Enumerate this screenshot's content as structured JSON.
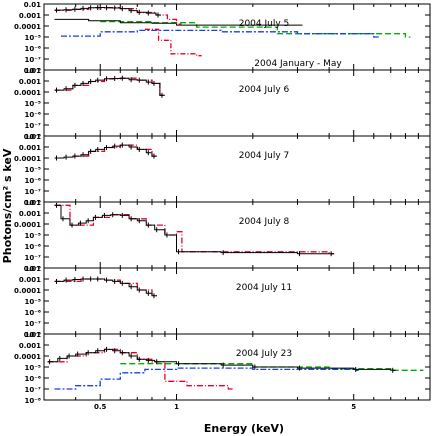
{
  "chart_data": {
    "type": "line",
    "xlabel": "Energy (keV)",
    "ylabel": "Photons/cm² s keV",
    "x_scale": "log",
    "y_scale": "log",
    "xlim": [
      0.3,
      10
    ],
    "ylim": [
      1e-08,
      0.01
    ],
    "x_tick_labels": [
      "0.5",
      "1",
      "5"
    ],
    "x_tick_values": [
      0.5,
      1,
      5
    ],
    "y_tick_labels": [
      "0.01",
      "0.001",
      "0.0001",
      "10⁻⁵",
      "10⁻⁶",
      "10⁻⁷",
      "10⁻⁸"
    ],
    "series_colors": {
      "data": "#000000",
      "model_total": "#e8002a",
      "comp_green": "#00b000",
      "comp_blue": "#1a3ee8"
    },
    "panels": [
      {
        "label": "2004 July 5",
        "label2": "2004 January - May",
        "data": [
          [
            0.33,
            0.0028
          ],
          [
            0.36,
            0.003
          ],
          [
            0.39,
            0.0033
          ],
          [
            0.42,
            0.004
          ],
          [
            0.45,
            0.0045
          ],
          [
            0.48,
            0.0048
          ],
          [
            0.52,
            0.0046
          ],
          [
            0.56,
            0.0043
          ],
          [
            0.6,
            0.0038
          ],
          [
            0.65,
            0.0025
          ],
          [
            0.7,
            0.0018
          ],
          [
            0.76,
            0.0015
          ],
          [
            0.83,
            0.001
          ]
        ],
        "model": [
          [
            0.33,
            0.0027
          ],
          [
            0.39,
            0.0032
          ],
          [
            0.45,
            0.0044
          ],
          [
            0.52,
            0.0046
          ],
          [
            0.6,
            0.0037
          ],
          [
            0.7,
            0.0017
          ],
          [
            0.83,
            0.001
          ],
          [
            0.92,
            0.0004
          ],
          [
            1.0,
            0.00015
          ]
        ],
        "extra": [
          [
            0.33,
            0.0004
          ],
          [
            0.45,
            0.0003
          ],
          [
            0.6,
            0.0002
          ],
          [
            0.8,
            0.00018
          ],
          [
            1.0,
            0.00012
          ],
          [
            1.5,
            0.00012
          ],
          [
            2.0,
            0.00012
          ],
          [
            3.0,
            0.00012
          ]
        ],
        "green": [
          [
            0.5,
            0.00025
          ],
          [
            0.8,
            0.0002
          ],
          [
            1.2,
            8e-05
          ],
          [
            2.5,
            2e-05
          ],
          [
            5,
            2e-05
          ],
          [
            8,
            1e-05
          ]
        ],
        "blue": [
          [
            0.35,
            1.2e-05
          ],
          [
            0.5,
            3e-05
          ],
          [
            0.7,
            4e-05
          ],
          [
            1.0,
            4e-05
          ],
          [
            1.5,
            3e-05
          ],
          [
            3,
            2e-05
          ],
          [
            6,
            1e-05
          ]
        ],
        "red_dash": [
          [
            0.75,
            5e-05
          ],
          [
            0.85,
            5e-06
          ],
          [
            0.95,
            3e-07
          ],
          [
            1.2,
            2e-07
          ]
        ]
      },
      {
        "label": "2004 July 6",
        "data": [
          [
            0.33,
            0.00015
          ],
          [
            0.36,
            0.0002
          ],
          [
            0.39,
            0.0004
          ],
          [
            0.42,
            0.0006
          ],
          [
            0.45,
            0.0009
          ],
          [
            0.48,
            0.0012
          ],
          [
            0.52,
            0.0016
          ],
          [
            0.56,
            0.0017
          ],
          [
            0.6,
            0.0018
          ],
          [
            0.65,
            0.0013
          ],
          [
            0.7,
            0.0012
          ],
          [
            0.76,
            0.0008
          ],
          [
            0.8,
            0.0006
          ],
          [
            0.86,
            5e-05
          ]
        ],
        "model": [
          [
            0.33,
            0.00015
          ],
          [
            0.39,
            0.0004
          ],
          [
            0.45,
            0.0009
          ],
          [
            0.52,
            0.0016
          ],
          [
            0.6,
            0.0018
          ],
          [
            0.7,
            0.0012
          ],
          [
            0.8,
            0.0006
          ],
          [
            0.86,
            5e-05
          ]
        ]
      },
      {
        "label": "2004 July 7",
        "data": [
          [
            0.33,
            0.0001
          ],
          [
            0.36,
            0.00012
          ],
          [
            0.39,
            0.00015
          ],
          [
            0.42,
            0.0002
          ],
          [
            0.45,
            0.0004
          ],
          [
            0.48,
            0.0006
          ],
          [
            0.52,
            0.0009
          ],
          [
            0.56,
            0.0012
          ],
          [
            0.6,
            0.0015
          ],
          [
            0.65,
            0.001
          ],
          [
            0.7,
            0.0006
          ],
          [
            0.76,
            0.0003
          ],
          [
            0.8,
            0.00015
          ]
        ],
        "model": [
          [
            0.39,
            0.00015
          ],
          [
            0.45,
            0.0004
          ],
          [
            0.52,
            0.0009
          ],
          [
            0.6,
            0.0015
          ],
          [
            0.7,
            0.0006
          ],
          [
            0.8,
            0.00015
          ]
        ]
      },
      {
        "label": "2004 July 8",
        "data": [
          [
            0.33,
            0.005
          ],
          [
            0.35,
            0.0003
          ],
          [
            0.38,
            8e-05
          ],
          [
            0.41,
            0.00012
          ],
          [
            0.44,
            0.0002
          ],
          [
            0.47,
            0.0004
          ],
          [
            0.51,
            0.0006
          ],
          [
            0.55,
            0.0007
          ],
          [
            0.6,
            0.0006
          ],
          [
            0.65,
            0.0003
          ],
          [
            0.7,
            0.0002
          ],
          [
            0.76,
            8e-05
          ],
          [
            0.82,
            3e-05
          ],
          [
            0.9,
            1e-05
          ],
          [
            1.0,
            3e-07
          ],
          [
            1.5,
            2.5e-07
          ],
          [
            3.0,
            2e-07
          ],
          [
            4.0,
            2e-07
          ]
        ],
        "model": [
          [
            0.33,
            0.005
          ],
          [
            0.38,
            8e-05
          ],
          [
            0.47,
            0.0004
          ],
          [
            0.55,
            0.0007
          ],
          [
            0.65,
            0.0003
          ],
          [
            0.76,
            8e-05
          ],
          [
            0.9,
            1e-05
          ],
          [
            1.0,
            2e-05
          ],
          [
            1.05,
            3e-07
          ],
          [
            4.0,
            2e-07
          ]
        ]
      },
      {
        "label": "2004 July 11",
        "data": [
          [
            0.33,
            0.0006
          ],
          [
            0.36,
            0.0008
          ],
          [
            0.39,
            0.0009
          ],
          [
            0.42,
            0.001
          ],
          [
            0.45,
            0.001
          ],
          [
            0.48,
            0.001
          ],
          [
            0.52,
            0.0008
          ],
          [
            0.56,
            0.0006
          ],
          [
            0.6,
            0.0004
          ],
          [
            0.65,
            0.0002
          ],
          [
            0.7,
            0.0001
          ],
          [
            0.76,
            5e-05
          ],
          [
            0.8,
            3e-05
          ]
        ],
        "model": [
          [
            0.33,
            0.0006
          ],
          [
            0.42,
            0.001
          ],
          [
            0.52,
            0.0008
          ],
          [
            0.6,
            0.0004
          ],
          [
            0.7,
            0.0001
          ],
          [
            0.8,
            3e-05
          ]
        ]
      },
      {
        "label": "2004 July 23",
        "data": [
          [
            0.31,
            3e-05
          ],
          [
            0.34,
            6e-05
          ],
          [
            0.37,
            0.0001
          ],
          [
            0.4,
            0.00015
          ],
          [
            0.44,
            0.0002
          ],
          [
            0.48,
            0.0003
          ],
          [
            0.52,
            0.0004
          ],
          [
            0.56,
            0.0003
          ],
          [
            0.6,
            0.0002
          ],
          [
            0.65,
            0.0001
          ],
          [
            0.7,
            5e-05
          ],
          [
            0.76,
            4e-05
          ],
          [
            0.82,
            3e-05
          ],
          [
            1.0,
            2e-05
          ],
          [
            1.5,
            1.5e-05
          ],
          [
            2.0,
            1e-05
          ],
          [
            3.0,
            8e-06
          ],
          [
            5.0,
            6e-06
          ],
          [
            7.0,
            5e-06
          ]
        ],
        "model": [
          [
            0.31,
            3e-05
          ],
          [
            0.37,
            0.0001
          ],
          [
            0.44,
            0.0002
          ],
          [
            0.52,
            0.0004
          ],
          [
            0.6,
            0.0002
          ],
          [
            0.7,
            5e-05
          ],
          [
            0.8,
            3e-05
          ],
          [
            0.9,
            5e-07
          ],
          [
            1.1,
            2e-07
          ],
          [
            1.6,
            1e-07
          ]
        ],
        "green": [
          [
            0.6,
            2e-05
          ],
          [
            1.0,
            2e-05
          ],
          [
            2.0,
            1e-05
          ],
          [
            4.0,
            7e-06
          ],
          [
            7.0,
            5e-06
          ],
          [
            9.0,
            5e-06
          ]
        ],
        "blue": [
          [
            0.33,
            1e-07
          ],
          [
            0.4,
            2e-07
          ],
          [
            0.5,
            8e-07
          ],
          [
            0.6,
            3e-06
          ],
          [
            0.75,
            6e-06
          ],
          [
            1.0,
            8e-06
          ],
          [
            2.0,
            6e-06
          ],
          [
            5.0,
            5e-06
          ]
        ]
      }
    ]
  }
}
